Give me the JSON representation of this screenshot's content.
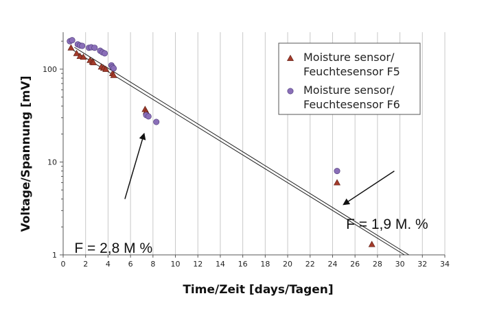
{
  "chart_data": {
    "type": "scatter",
    "xlabel": "Time/Zeit [days/Tagen]",
    "ylabel": "Voltage/Spannung  [mV]",
    "xlim": [
      0,
      34
    ],
    "ylim": [
      1,
      250
    ],
    "yscale": "log",
    "x_ticks": [
      0,
      2,
      4,
      6,
      8,
      10,
      12,
      14,
      16,
      18,
      20,
      22,
      24,
      26,
      28,
      30,
      32,
      34
    ],
    "y_ticks": [
      1,
      10,
      100
    ],
    "grid": "vertical",
    "legend_position": "top-right",
    "series": [
      {
        "name": "Moisture sensor/\nFeuchtesensor F5",
        "marker": "triangle",
        "color": "#a33a2a",
        "points": [
          [
            0.7,
            170
          ],
          [
            1.2,
            148
          ],
          [
            1.5,
            138
          ],
          [
            1.8,
            135
          ],
          [
            2.4,
            125
          ],
          [
            2.6,
            120
          ],
          [
            2.7,
            118
          ],
          [
            3.4,
            106
          ],
          [
            3.6,
            103
          ],
          [
            3.8,
            100
          ],
          [
            4.4,
            90
          ],
          [
            4.5,
            86
          ],
          [
            7.3,
            37
          ],
          [
            7.4,
            35
          ],
          [
            7.5,
            33
          ],
          [
            24.4,
            6
          ],
          [
            27.5,
            1.3
          ]
        ]
      },
      {
        "name": "Moisture sensor/\nFeuchtesensor F6",
        "marker": "circle",
        "color": "#8a6fb8",
        "points": [
          [
            0.6,
            200
          ],
          [
            0.8,
            205
          ],
          [
            1.3,
            185
          ],
          [
            1.5,
            180
          ],
          [
            1.7,
            178
          ],
          [
            2.3,
            170
          ],
          [
            2.5,
            172
          ],
          [
            2.8,
            170
          ],
          [
            3.3,
            158
          ],
          [
            3.5,
            152
          ],
          [
            3.7,
            148
          ],
          [
            4.3,
            110
          ],
          [
            4.4,
            105
          ],
          [
            4.5,
            102
          ],
          [
            7.4,
            32
          ],
          [
            7.6,
            31
          ],
          [
            8.3,
            27
          ],
          [
            24.4,
            8
          ]
        ]
      }
    ],
    "trend_lines": [
      {
        "x": [
          0.9,
          30.4
        ],
        "y": [
          160,
          1
        ]
      },
      {
        "x": [
          1.0,
          30.8
        ],
        "y": [
          172,
          1
        ]
      }
    ],
    "annotations": [
      {
        "text": "F = 2,8 M %",
        "x_text": 1,
        "y_text": 1.05,
        "arrow_from": [
          5.5,
          4
        ],
        "arrow_to": [
          7.2,
          20
        ]
      },
      {
        "text": "F = 1,9 M. %",
        "x_text": 25.2,
        "y_text": 1.9,
        "arrow_from": [
          29.5,
          8
        ],
        "arrow_to": [
          25,
          3.5
        ]
      }
    ]
  }
}
